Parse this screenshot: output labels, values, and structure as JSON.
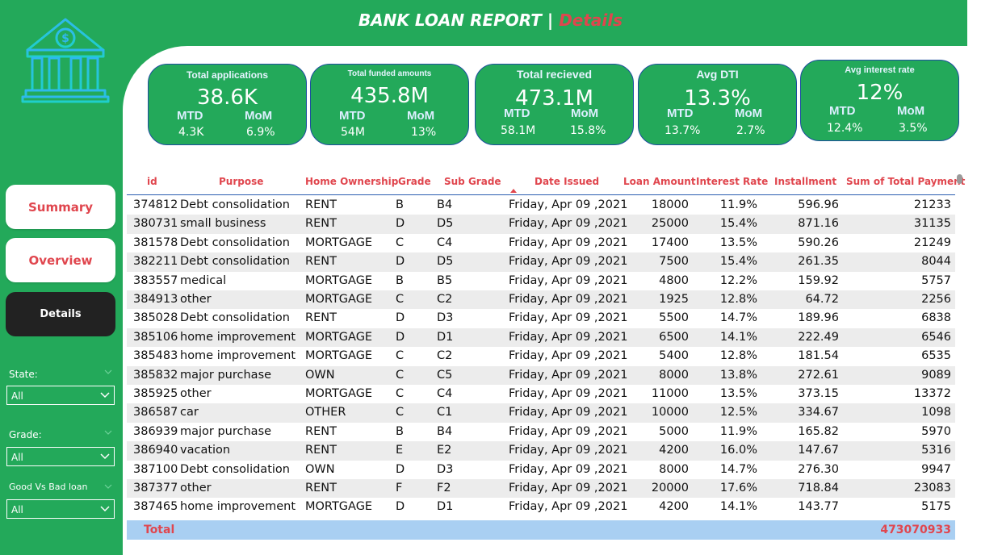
{
  "header": {
    "title": "BANK LOAN REPORT",
    "separator": "|",
    "subtitle": "Details"
  },
  "logo": {
    "icon": "bank-icon",
    "color": "#1fc6e6"
  },
  "kpis": [
    {
      "title": "Total applications",
      "value": "38.6K",
      "mtd_label": "MTD",
      "mom_label": "MoM",
      "mtd": "4.3K",
      "mom": "6.9%"
    },
    {
      "title": "Total funded amounts",
      "value": "435.8M",
      "mtd_label": "MTD",
      "mom_label": "MoM",
      "mtd": "54M",
      "mom": "13%"
    },
    {
      "title": "Total recieved",
      "value": "473.1M",
      "mtd_label": "MTD",
      "mom_label": "MoM",
      "mtd": "58.1M",
      "mom": "15.8%"
    },
    {
      "title": "Avg DTI",
      "value": "13.3%",
      "mtd_label": "MTD",
      "mom_label": "MoM",
      "mtd": "13.7%",
      "mom": "2.7%"
    },
    {
      "title": "Avg interest rate",
      "value": "12%",
      "mtd_label": "MTD",
      "mom_label": "MoM",
      "mtd": "12.4%",
      "mom": "3.5%"
    }
  ],
  "nav": {
    "summary": "Summary",
    "overview": "Overview",
    "details": "Details"
  },
  "filters": {
    "state": {
      "label": "State:",
      "value": "All"
    },
    "grade": {
      "label": "Grade:",
      "value": "All"
    },
    "good_bad": {
      "label": "Good Vs Bad loan",
      "value": "All"
    }
  },
  "table": {
    "columns": [
      "id",
      "Purpose",
      "Home Ownership",
      "Grade",
      "Sub Grade",
      "Date Issued",
      "Loan Amount",
      "Interest Rate",
      "Installment",
      "Sum of Total Payment"
    ],
    "rows": [
      [
        "374812",
        "Debt consolidation",
        "RENT",
        "B",
        "B4",
        "Friday, Apr 09 ,2021",
        "18000",
        "11.9%",
        "596.96",
        "21233"
      ],
      [
        "380731",
        "small business",
        "RENT",
        "D",
        "D5",
        "Friday, Apr 09 ,2021",
        "25000",
        "15.4%",
        "871.16",
        "31135"
      ],
      [
        "381578",
        "Debt consolidation",
        "MORTGAGE",
        "C",
        "C4",
        "Friday, Apr 09 ,2021",
        "17400",
        "13.5%",
        "590.26",
        "21249"
      ],
      [
        "382211",
        "Debt consolidation",
        "RENT",
        "D",
        "D5",
        "Friday, Apr 09 ,2021",
        "7500",
        "15.4%",
        "261.35",
        "8044"
      ],
      [
        "383557",
        "medical",
        "MORTGAGE",
        "B",
        "B5",
        "Friday, Apr 09 ,2021",
        "4800",
        "12.2%",
        "159.92",
        "5757"
      ],
      [
        "384913",
        "other",
        "MORTGAGE",
        "C",
        "C2",
        "Friday, Apr 09 ,2021",
        "1925",
        "12.8%",
        "64.72",
        "2256"
      ],
      [
        "385028",
        "Debt consolidation",
        "RENT",
        "D",
        "D3",
        "Friday, Apr 09 ,2021",
        "5500",
        "14.7%",
        "189.96",
        "6838"
      ],
      [
        "385106",
        "home improvement",
        "MORTGAGE",
        "D",
        "D1",
        "Friday, Apr 09 ,2021",
        "6500",
        "14.1%",
        "222.49",
        "6546"
      ],
      [
        "385483",
        "home improvement",
        "MORTGAGE",
        "C",
        "C2",
        "Friday, Apr 09 ,2021",
        "5400",
        "12.8%",
        "181.54",
        "6535"
      ],
      [
        "385832",
        "major purchase",
        "OWN",
        "C",
        "C5",
        "Friday, Apr 09 ,2021",
        "8000",
        "13.8%",
        "272.61",
        "9089"
      ],
      [
        "385925",
        "other",
        "MORTGAGE",
        "C",
        "C4",
        "Friday, Apr 09 ,2021",
        "11000",
        "13.5%",
        "373.15",
        "13372"
      ],
      [
        "386587",
        "car",
        "OTHER",
        "C",
        "C1",
        "Friday, Apr 09 ,2021",
        "10000",
        "12.5%",
        "334.67",
        "1098"
      ],
      [
        "386939",
        "major purchase",
        "RENT",
        "B",
        "B4",
        "Friday, Apr 09 ,2021",
        "5000",
        "11.9%",
        "165.82",
        "5970"
      ],
      [
        "386940",
        "vacation",
        "RENT",
        "E",
        "E2",
        "Friday, Apr 09 ,2021",
        "4200",
        "16.0%",
        "147.67",
        "5316"
      ],
      [
        "387100",
        "Debt consolidation",
        "OWN",
        "D",
        "D3",
        "Friday, Apr 09 ,2021",
        "8000",
        "14.7%",
        "276.30",
        "9947"
      ],
      [
        "387377",
        "other",
        "RENT",
        "F",
        "F2",
        "Friday, Apr 09 ,2021",
        "20000",
        "17.6%",
        "718.84",
        "23083"
      ],
      [
        "387465",
        "home improvement",
        "MORTGAGE",
        "D",
        "D1",
        "Friday, Apr 09 ,2021",
        "4200",
        "14.1%",
        "143.77",
        "5175"
      ]
    ],
    "total_label": "Total",
    "total_value": "473070933"
  },
  "colors": {
    "green": "#23a95a",
    "accent_red": "#e0464e",
    "card_border": "#1d4d9f",
    "total_row": "#a9cff2",
    "nav_dark": "#222222"
  }
}
